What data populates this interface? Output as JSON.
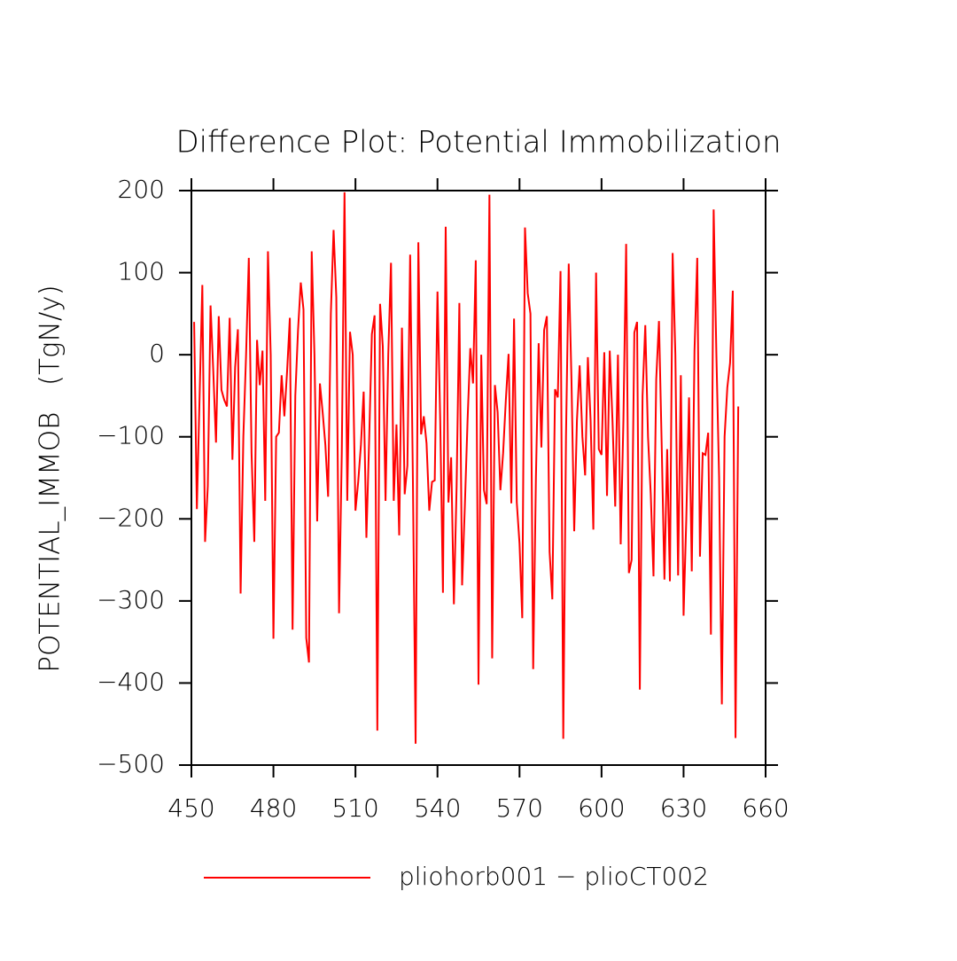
{
  "chart_data": {
    "type": "line",
    "title": "Difference Plot: Potential Immobilization",
    "y_label": "POTENTIAL_IMMOB   (TgN/y)",
    "x": [
      451,
      452,
      453,
      454,
      455,
      456,
      457,
      458,
      459,
      460,
      461,
      462,
      463,
      464,
      465,
      466,
      467,
      468,
      469,
      470,
      471,
      472,
      473,
      474,
      475,
      476,
      477,
      478,
      479,
      480,
      481,
      482,
      483,
      484,
      485,
      486,
      487,
      488,
      489,
      490,
      491,
      492,
      493,
      494,
      495,
      496,
      497,
      498,
      499,
      500,
      501,
      502,
      503,
      504,
      505,
      506,
      507,
      508,
      509,
      510,
      511,
      512,
      513,
      514,
      515,
      516,
      517,
      518,
      519,
      520,
      521,
      522,
      523,
      524,
      525,
      526,
      527,
      528,
      529,
      530,
      531,
      532,
      533,
      534,
      535,
      536,
      537,
      538,
      539,
      540,
      541,
      542,
      543,
      544,
      545,
      546,
      547,
      548,
      549,
      550,
      551,
      552,
      553,
      554,
      555,
      556,
      557,
      558,
      559,
      560,
      561,
      562,
      563,
      564,
      565,
      566,
      567,
      568,
      569,
      570,
      571,
      572,
      573,
      574,
      575,
      576,
      577,
      578,
      579,
      580,
      581,
      582,
      583,
      584,
      585,
      586,
      587,
      588,
      589,
      590,
      591,
      592,
      593,
      594,
      595,
      596,
      597,
      598,
      599,
      600,
      601,
      602,
      603,
      604,
      605,
      606,
      607,
      608,
      609,
      610,
      611,
      612,
      613,
      614,
      615,
      616,
      617,
      618,
      619,
      620,
      621,
      622,
      623,
      624,
      625,
      626,
      627,
      628,
      629,
      630,
      631,
      632,
      633,
      634,
      635,
      636,
      637,
      638,
      639,
      640,
      641,
      642,
      643,
      644,
      645,
      646,
      647,
      648,
      649,
      650
    ],
    "series": [
      {
        "name": "pliohorb001 − plioCT002",
        "color": "#ff0000",
        "values": [
          40,
          -188,
          -50,
          85,
          -228,
          -160,
          60,
          -20,
          -107,
          47,
          -43,
          -55,
          -63,
          45,
          -128,
          -15,
          31,
          -291,
          -100,
          0,
          118,
          -120,
          -228,
          18,
          -37,
          5,
          -178,
          126,
          0,
          -346,
          -100,
          -95,
          -25,
          -75,
          -20,
          45,
          -335,
          -50,
          30,
          88,
          55,
          -345,
          -375,
          126,
          0,
          -203,
          -35,
          -70,
          -110,
          -173,
          50,
          152,
          70,
          -315,
          -120,
          198,
          -178,
          28,
          0,
          -190,
          -155,
          -110,
          -45,
          -223,
          -105,
          25,
          48,
          -458,
          62,
          10,
          -178,
          0,
          112,
          -178,
          -85,
          -220,
          33,
          -170,
          -135,
          122,
          -150,
          -474,
          137,
          -97,
          -75,
          -108,
          -190,
          -155,
          -153,
          77,
          -80,
          -290,
          156,
          -180,
          -125,
          -304,
          -160,
          63,
          -281,
          -185,
          -80,
          8,
          -35,
          115,
          -402,
          0,
          -165,
          -182,
          195,
          -370,
          -37,
          -70,
          -165,
          -120,
          -55,
          1,
          -181,
          44,
          -180,
          -230,
          -321,
          155,
          75,
          50,
          -383,
          -150,
          14,
          -113,
          30,
          47,
          -240,
          -298,
          -42,
          -52,
          102,
          -468,
          -100,
          111,
          -30,
          -215,
          -80,
          -13,
          -100,
          -147,
          -3,
          -80,
          -213,
          100,
          -115,
          -122,
          3,
          -172,
          5,
          -80,
          -185,
          0,
          -231,
          -80,
          135,
          -266,
          -250,
          27,
          40,
          -408,
          -50,
          36,
          -100,
          -170,
          -270,
          -30,
          41,
          -110,
          -274,
          -115,
          -276,
          124,
          0,
          -269,
          -25,
          -318,
          -200,
          -52,
          -264,
          5,
          118,
          -246,
          -120,
          -122,
          -95,
          -341,
          177,
          0,
          -150,
          -426,
          -100,
          -40,
          -10,
          78,
          -467,
          -63
        ]
      }
    ],
    "xlim": [
      450,
      660
    ],
    "xticks": [
      450,
      480,
      510,
      540,
      570,
      600,
      630,
      660
    ],
    "ylim": [
      -500,
      200
    ],
    "yticks": [
      {
        "value": -500,
        "label": "−500"
      },
      {
        "value": -400,
        "label": "−400"
      },
      {
        "value": -300,
        "label": "−300"
      },
      {
        "value": -200,
        "label": "−200"
      },
      {
        "value": -100,
        "label": "−100"
      },
      0,
      100,
      200
    ]
  }
}
